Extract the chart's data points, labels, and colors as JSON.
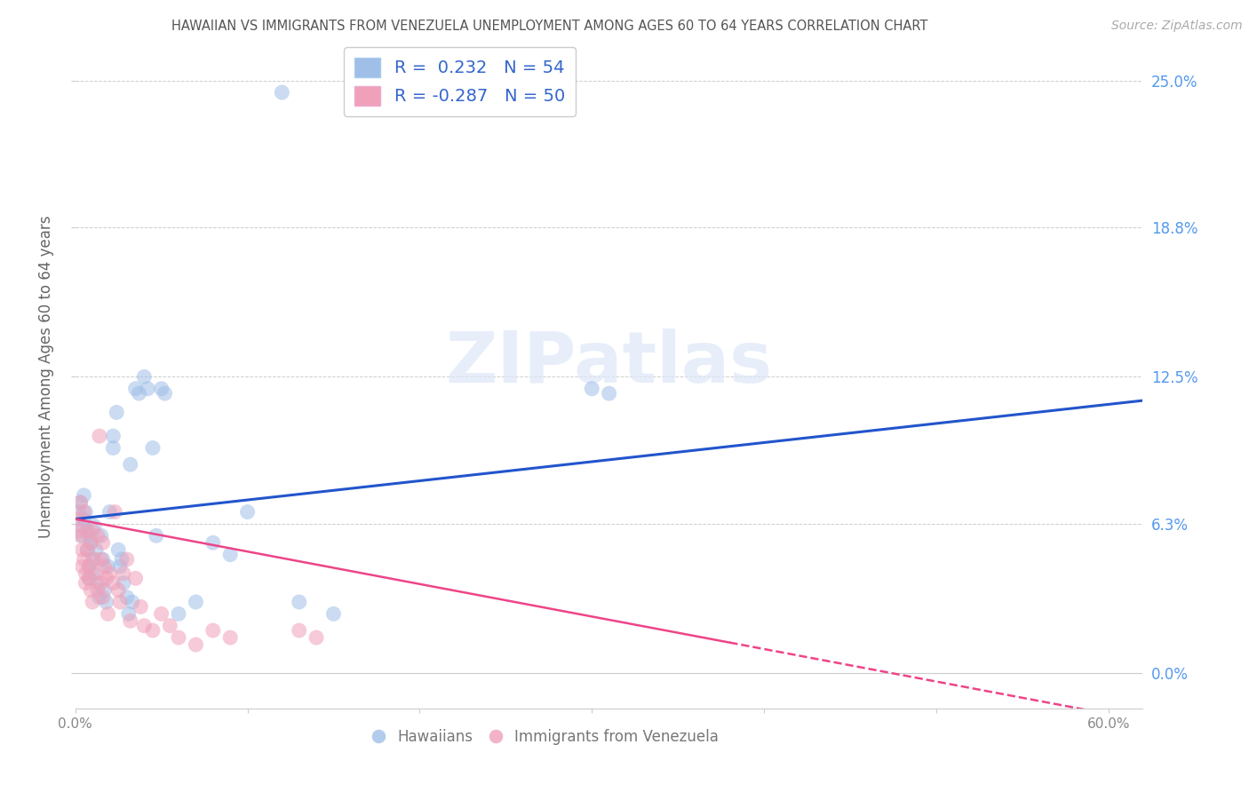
{
  "title": "HAWAIIAN VS IMMIGRANTS FROM VENEZUELA UNEMPLOYMENT AMONG AGES 60 TO 64 YEARS CORRELATION CHART",
  "source": "Source: ZipAtlas.com",
  "ylabel_label": "Unemployment Among Ages 60 to 64 years",
  "legend_label1": "Hawaiians",
  "legend_label2": "Immigrants from Venezuela",
  "watermark": "ZIPatlas",
  "blue_color": "#a0bfe8",
  "pink_color": "#f0a0b8",
  "blue_line_color": "#2255cc",
  "pink_line_color": "#ee4488",
  "right_axis_color": "#5599ee",
  "title_color": "#555555",
  "hawaiians_data": [
    [
      0.002,
      0.068
    ],
    [
      0.003,
      0.072
    ],
    [
      0.004,
      0.062
    ],
    [
      0.004,
      0.058
    ],
    [
      0.005,
      0.075
    ],
    [
      0.005,
      0.065
    ],
    [
      0.006,
      0.068
    ],
    [
      0.007,
      0.06
    ],
    [
      0.007,
      0.052
    ],
    [
      0.008,
      0.058
    ],
    [
      0.008,
      0.045
    ],
    [
      0.008,
      0.04
    ],
    [
      0.009,
      0.055
    ],
    [
      0.01,
      0.048
    ],
    [
      0.01,
      0.042
    ],
    [
      0.011,
      0.062
    ],
    [
      0.012,
      0.052
    ],
    [
      0.013,
      0.038
    ],
    [
      0.014,
      0.032
    ],
    [
      0.015,
      0.058
    ],
    [
      0.016,
      0.048
    ],
    [
      0.017,
      0.035
    ],
    [
      0.018,
      0.03
    ],
    [
      0.019,
      0.045
    ],
    [
      0.02,
      0.068
    ],
    [
      0.022,
      0.1
    ],
    [
      0.022,
      0.095
    ],
    [
      0.024,
      0.11
    ],
    [
      0.025,
      0.052
    ],
    [
      0.026,
      0.045
    ],
    [
      0.027,
      0.048
    ],
    [
      0.028,
      0.038
    ],
    [
      0.03,
      0.032
    ],
    [
      0.031,
      0.025
    ],
    [
      0.032,
      0.088
    ],
    [
      0.033,
      0.03
    ],
    [
      0.035,
      0.12
    ],
    [
      0.037,
      0.118
    ],
    [
      0.04,
      0.125
    ],
    [
      0.042,
      0.12
    ],
    [
      0.045,
      0.095
    ],
    [
      0.047,
      0.058
    ],
    [
      0.05,
      0.12
    ],
    [
      0.052,
      0.118
    ],
    [
      0.06,
      0.025
    ],
    [
      0.07,
      0.03
    ],
    [
      0.08,
      0.055
    ],
    [
      0.09,
      0.05
    ],
    [
      0.1,
      0.068
    ],
    [
      0.12,
      0.245
    ],
    [
      0.13,
      0.03
    ],
    [
      0.15,
      0.025
    ],
    [
      0.3,
      0.12
    ],
    [
      0.31,
      0.118
    ]
  ],
  "venezuela_data": [
    [
      0.002,
      0.065
    ],
    [
      0.002,
      0.06
    ],
    [
      0.003,
      0.058
    ],
    [
      0.003,
      0.072
    ],
    [
      0.004,
      0.052
    ],
    [
      0.004,
      0.045
    ],
    [
      0.005,
      0.068
    ],
    [
      0.005,
      0.048
    ],
    [
      0.006,
      0.042
    ],
    [
      0.006,
      0.038
    ],
    [
      0.007,
      0.06
    ],
    [
      0.007,
      0.052
    ],
    [
      0.008,
      0.045
    ],
    [
      0.008,
      0.04
    ],
    [
      0.009,
      0.055
    ],
    [
      0.009,
      0.035
    ],
    [
      0.01,
      0.06
    ],
    [
      0.01,
      0.03
    ],
    [
      0.011,
      0.048
    ],
    [
      0.012,
      0.042
    ],
    [
      0.013,
      0.058
    ],
    [
      0.013,
      0.035
    ],
    [
      0.014,
      0.1
    ],
    [
      0.015,
      0.048
    ],
    [
      0.015,
      0.038
    ],
    [
      0.016,
      0.055
    ],
    [
      0.016,
      0.032
    ],
    [
      0.017,
      0.045
    ],
    [
      0.018,
      0.04
    ],
    [
      0.019,
      0.025
    ],
    [
      0.02,
      0.042
    ],
    [
      0.022,
      0.038
    ],
    [
      0.023,
      0.068
    ],
    [
      0.025,
      0.035
    ],
    [
      0.026,
      0.03
    ],
    [
      0.028,
      0.042
    ],
    [
      0.03,
      0.048
    ],
    [
      0.032,
      0.022
    ],
    [
      0.035,
      0.04
    ],
    [
      0.038,
      0.028
    ],
    [
      0.04,
      0.02
    ],
    [
      0.045,
      0.018
    ],
    [
      0.05,
      0.025
    ],
    [
      0.055,
      0.02
    ],
    [
      0.06,
      0.015
    ],
    [
      0.07,
      0.012
    ],
    [
      0.08,
      0.018
    ],
    [
      0.09,
      0.015
    ],
    [
      0.13,
      0.018
    ],
    [
      0.14,
      0.015
    ]
  ],
  "xlim": [
    0.0,
    0.62
  ],
  "ylim": [
    -0.015,
    0.265
  ],
  "yticks": [
    0.0,
    0.063,
    0.125,
    0.188,
    0.25
  ],
  "ytick_labels": [
    "0.0%",
    "6.3%",
    "12.5%",
    "18.8%",
    "25.0%"
  ],
  "xticks": [
    0.0,
    0.1,
    0.2,
    0.3,
    0.4,
    0.5,
    0.6
  ],
  "xtick_labels": [
    "0.0%",
    "",
    "",
    "",
    "",
    "",
    "60.0%"
  ],
  "blue_R": 0.232,
  "blue_N": 54,
  "pink_R": -0.287,
  "pink_N": 50
}
